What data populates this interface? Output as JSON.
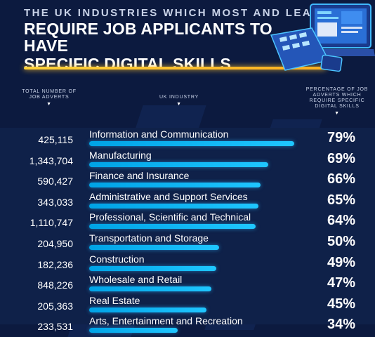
{
  "header": {
    "subtitle": "THE UK INDUSTRIES WHICH MOST AND LEAST",
    "title_line1": "REQUIRE JOB APPLICANTS TO HAVE",
    "title_line2": "SPECIFIC DIGITAL SKILLS"
  },
  "columns": {
    "count_label": "TOTAL NUMBER OF JOB ADVERTS",
    "industry_label": "UK INDUSTRY",
    "pct_label": "PERCENTAGE OF JOB ADVERTS WHICH REQUIRE SPECIFIC DIGITAL SKILLS",
    "caret": "▼"
  },
  "colors": {
    "background": "#0c1a3f",
    "bar": "#1fb8ff",
    "accent_line": "#ffc02a"
  },
  "chart_data": {
    "type": "bar",
    "title": "THE UK INDUSTRIES WHICH MOST AND LEAST REQUIRE JOB APPLICANTS TO HAVE SPECIFIC DIGITAL SKILLS",
    "unit": "%",
    "ylim": [
      0,
      100
    ],
    "rows": [
      {
        "count": "425,115",
        "industry": "Information and Communication",
        "value": 79,
        "label": "79%"
      },
      {
        "count": "1,343,704",
        "industry": "Manufacturing",
        "value": 69,
        "label": "69%"
      },
      {
        "count": "590,427",
        "industry": "Finance and Insurance",
        "value": 66,
        "label": "66%"
      },
      {
        "count": "343,033",
        "industry": "Administrative and Support Services",
        "value": 65,
        "label": "65%"
      },
      {
        "count": "1,110,747",
        "industry": "Professional, Scientific and Technical",
        "value": 64,
        "label": "64%"
      },
      {
        "count": "204,950",
        "industry": "Transportation and Storage",
        "value": 50,
        "label": "50%"
      },
      {
        "count": "182,236",
        "industry": "Construction",
        "value": 49,
        "label": "49%"
      },
      {
        "count": "848,226",
        "industry": "Wholesale and Retail",
        "value": 47,
        "label": "47%"
      },
      {
        "count": "205,363",
        "industry": "Real Estate",
        "value": 45,
        "label": "45%"
      },
      {
        "count": "233,531",
        "industry": "Arts, Entertainment and Recreation",
        "value": 34,
        "label": "34%"
      }
    ]
  }
}
